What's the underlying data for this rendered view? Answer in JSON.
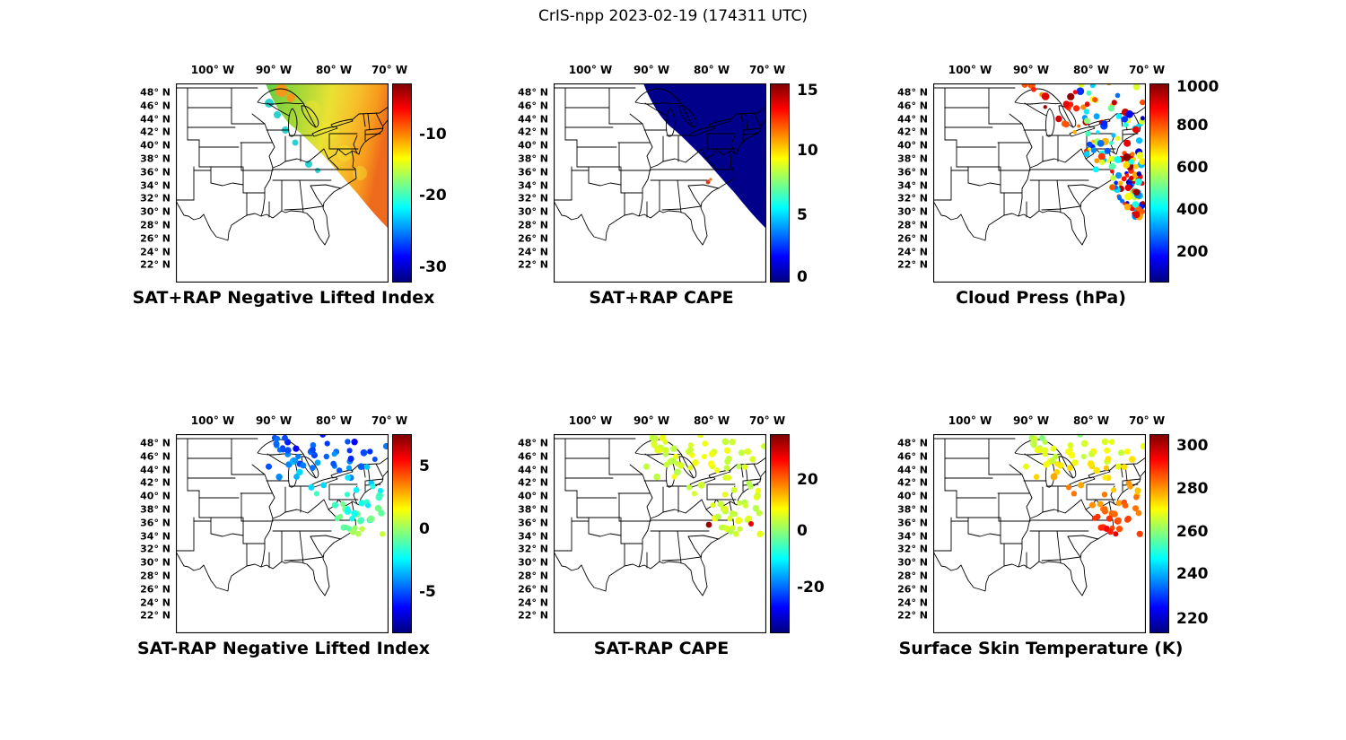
{
  "figure_title": "CrIS-npp 2023-02-19 (174311 UTC)",
  "axes": {
    "lon_ticks": [
      "100° W",
      "90° W",
      "80° W",
      "70° W"
    ],
    "lat_ticks": [
      "48° N",
      "46° N",
      "44° N",
      "42° N",
      "40° N",
      "38° N",
      "36° N",
      "34° N",
      "32° N",
      "30° N",
      "28° N",
      "26° N",
      "24° N",
      "22° N"
    ]
  },
  "panels": [
    {
      "id": "sat-plus-rap-nli",
      "title": "SAT+RAP Negative Lifted Index",
      "colorbar": {
        "ticks": [
          {
            "label": "-10",
            "pos": 0.257
          },
          {
            "label": "-20",
            "pos": 0.563
          },
          {
            "label": "-30",
            "pos": 0.923
          }
        ]
      }
    },
    {
      "id": "sat-plus-rap-cape",
      "title": "SAT+RAP CAPE",
      "colorbar": {
        "ticks": [
          {
            "label": "15",
            "pos": 0.035
          },
          {
            "label": "10",
            "pos": 0.338
          },
          {
            "label": "5",
            "pos": 0.662
          },
          {
            "label": "0",
            "pos": 0.975
          }
        ]
      }
    },
    {
      "id": "cloud-press",
      "title": "Cloud Press (hPa)",
      "colorbar": {
        "ticks": [
          {
            "label": "1000",
            "pos": 0.02
          },
          {
            "label": "800",
            "pos": 0.212
          },
          {
            "label": "600",
            "pos": 0.423
          },
          {
            "label": "400",
            "pos": 0.635
          },
          {
            "label": "200",
            "pos": 0.846
          }
        ]
      }
    },
    {
      "id": "sat-minus-rap-nli",
      "title": "SAT-RAP Negative Lifted Index",
      "colorbar": {
        "ticks": [
          {
            "label": "5",
            "pos": 0.162
          },
          {
            "label": "0",
            "pos": 0.477
          },
          {
            "label": "-5",
            "pos": 0.793
          }
        ]
      }
    },
    {
      "id": "sat-minus-rap-cape",
      "title": "SAT-RAP CAPE",
      "colorbar": {
        "ticks": [
          {
            "label": "20",
            "pos": 0.23
          },
          {
            "label": "0",
            "pos": 0.486
          },
          {
            "label": "-20",
            "pos": 0.77
          }
        ]
      }
    },
    {
      "id": "surface-skin-temp",
      "title": "Surface Skin Temperature (K)",
      "colorbar": {
        "ticks": [
          {
            "label": "300",
            "pos": 0.059
          },
          {
            "label": "280",
            "pos": 0.275
          },
          {
            "label": "260",
            "pos": 0.49
          },
          {
            "label": "240",
            "pos": 0.703
          },
          {
            "label": "220",
            "pos": 0.928
          }
        ]
      }
    }
  ],
  "chart_data": [
    {
      "type": "heatmap",
      "title": "SAT+RAP Negative Lifted Index",
      "colormap": "jet",
      "colorbar_ticks": [
        -10,
        -20,
        -30
      ],
      "colorbar_range_est": [
        -32,
        -6
      ],
      "lon_ticks_deg_w": [
        100,
        90,
        80,
        70
      ],
      "lat_ticks_deg_n": [
        48,
        46,
        44,
        42,
        40,
        38,
        36,
        34,
        32,
        30,
        28,
        26,
        24,
        22
      ],
      "data_summary": "Satellite swath over Great Lakes / northeastern US; mostly -12 to -17 (green-yellow), -8 to -10 (orange) along the southeastern edge, scattered ~-20 (cyan) patches near the western edge of the swath"
    },
    {
      "type": "heatmap",
      "title": "SAT+RAP CAPE",
      "colormap": "jet",
      "colorbar_ticks": [
        15,
        10,
        5,
        0
      ],
      "colorbar_range_est": [
        0,
        15.5
      ],
      "lon_ticks_deg_w": [
        100,
        90,
        80,
        70
      ],
      "lat_ticks_deg_n": [
        48,
        46,
        44,
        42,
        40,
        38,
        36,
        34,
        32,
        30,
        28,
        26,
        24,
        22
      ],
      "data_summary": "Near-zero CAPE (dark blue) across the whole swath; one small high-CAPE red/orange spot near the Virginia coast"
    },
    {
      "type": "heatmap",
      "title": "Cloud Press (hPa)",
      "colormap": "jet",
      "colorbar_ticks": [
        1000,
        800,
        600,
        400,
        200
      ],
      "colorbar_range_est": [
        130,
        1013
      ],
      "lon_ticks_deg_w": [
        100,
        90,
        80,
        70
      ],
      "lat_ticks_deg_n": [
        48,
        46,
        44,
        42,
        40,
        38,
        36,
        34,
        32,
        30,
        28,
        26,
        24,
        22
      ],
      "data_summary": "Speckled cloud pressures 150-1000 hPa: high values (red/orange ~850-1000) over the upper Midwest and along the eastern edge, low values (blue ~200-400) over New England / mid-Atlantic, mixed green-cyan elsewhere"
    },
    {
      "type": "scatter",
      "title": "SAT-RAP Negative Lifted Index",
      "colormap": "jet",
      "colorbar_ticks": [
        5,
        0,
        -5
      ],
      "colorbar_range_est": [
        -8,
        8
      ],
      "lon_ticks_deg_w": [
        100,
        90,
        80,
        70
      ],
      "lat_ticks_deg_n": [
        48,
        46,
        44,
        42,
        40,
        38,
        36,
        34,
        32,
        30,
        28,
        26,
        24,
        22
      ],
      "data_summary": "Sparse footprints: -4 to -6 (dark blue) over the upper Great Lakes, -1 to -3 (cyan) over Ohio valley / Pennsylvania, ~0 to +2 (green) near the Virginia coast"
    },
    {
      "type": "scatter",
      "title": "SAT-RAP CAPE",
      "colormap": "jet",
      "colorbar_ticks": [
        20,
        0,
        -20
      ],
      "colorbar_range_est": [
        -38,
        38
      ],
      "lon_ticks_deg_w": [
        100,
        90,
        80,
        70
      ],
      "lat_ticks_deg_n": [
        48,
        46,
        44,
        42,
        40,
        38,
        36,
        34,
        32,
        30,
        28,
        26,
        24,
        22
      ],
      "data_summary": "Footprints near 0 to +5 (light green) everywhere; one ~+30 (red) spot near the Virginia coast"
    },
    {
      "type": "scatter",
      "title": "Surface Skin Temperature (K)",
      "colormap": "jet",
      "colorbar_ticks": [
        300,
        280,
        260,
        240,
        220
      ],
      "colorbar_range_est": [
        215,
        305
      ],
      "lon_ticks_deg_w": [
        100,
        90,
        80,
        70
      ],
      "lat_ticks_deg_n": [
        48,
        46,
        44,
        42,
        40,
        38,
        36,
        34,
        32,
        30,
        28,
        26,
        24,
        22
      ],
      "data_summary": "Skin temperatures ~268-274 K (green) to the north, ~278-285 K (yellow-orange) over the Ohio valley / mid-Atlantic, ~288-295 K (orange-red) near the Virginia / Carolina coast"
    }
  ]
}
